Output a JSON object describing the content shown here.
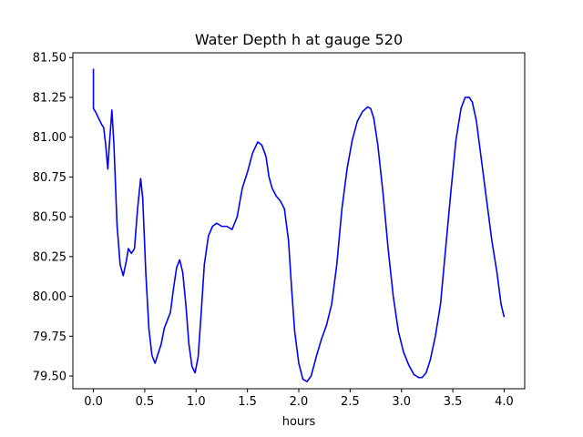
{
  "chart_data": {
    "type": "line",
    "title": "Water Depth h at gauge 520",
    "xlabel": "hours",
    "ylabel": "",
    "xlim": [
      -0.2,
      4.2
    ],
    "ylim": [
      79.42,
      81.53
    ],
    "xticks": [
      0.0,
      0.5,
      1.0,
      1.5,
      2.0,
      2.5,
      3.0,
      3.5,
      4.0
    ],
    "xtick_labels": [
      "0.0",
      "0.5",
      "1.0",
      "1.5",
      "2.0",
      "2.5",
      "3.0",
      "3.5",
      "4.0"
    ],
    "yticks": [
      79.5,
      79.75,
      80.0,
      80.25,
      80.5,
      80.75,
      81.0,
      81.25,
      81.5
    ],
    "ytick_labels": [
      "79.50",
      "79.75",
      "80.00",
      "80.25",
      "80.50",
      "80.75",
      "81.00",
      "81.25",
      "81.50"
    ],
    "grid": false,
    "series": [
      {
        "color": "#0000ff",
        "points": [
          [
            0.0,
            81.43
          ],
          [
            0.0,
            81.18
          ],
          [
            0.02,
            81.16
          ],
          [
            0.05,
            81.12
          ],
          [
            0.08,
            81.08
          ],
          [
            0.1,
            81.06
          ],
          [
            0.12,
            80.95
          ],
          [
            0.14,
            80.8
          ],
          [
            0.155,
            80.95
          ],
          [
            0.18,
            81.17
          ],
          [
            0.2,
            80.95
          ],
          [
            0.23,
            80.45
          ],
          [
            0.26,
            80.2
          ],
          [
            0.29,
            80.13
          ],
          [
            0.32,
            80.22
          ],
          [
            0.34,
            80.3
          ],
          [
            0.37,
            80.27
          ],
          [
            0.4,
            80.3
          ],
          [
            0.43,
            80.55
          ],
          [
            0.46,
            80.74
          ],
          [
            0.48,
            80.62
          ],
          [
            0.51,
            80.15
          ],
          [
            0.54,
            79.8
          ],
          [
            0.57,
            79.63
          ],
          [
            0.6,
            79.58
          ],
          [
            0.63,
            79.64
          ],
          [
            0.66,
            79.7
          ],
          [
            0.69,
            79.8
          ],
          [
            0.72,
            79.85
          ],
          [
            0.75,
            79.9
          ],
          [
            0.78,
            80.05
          ],
          [
            0.81,
            80.18
          ],
          [
            0.84,
            80.23
          ],
          [
            0.87,
            80.15
          ],
          [
            0.9,
            79.95
          ],
          [
            0.93,
            79.7
          ],
          [
            0.96,
            79.56
          ],
          [
            0.99,
            79.52
          ],
          [
            1.02,
            79.62
          ],
          [
            1.05,
            79.9
          ],
          [
            1.08,
            80.2
          ],
          [
            1.12,
            80.38
          ],
          [
            1.16,
            80.44
          ],
          [
            1.2,
            80.46
          ],
          [
            1.25,
            80.44
          ],
          [
            1.3,
            80.44
          ],
          [
            1.35,
            80.42
          ],
          [
            1.4,
            80.5
          ],
          [
            1.45,
            80.68
          ],
          [
            1.5,
            80.78
          ],
          [
            1.55,
            80.9
          ],
          [
            1.6,
            80.97
          ],
          [
            1.64,
            80.95
          ],
          [
            1.68,
            80.88
          ],
          [
            1.71,
            80.75
          ],
          [
            1.74,
            80.68
          ],
          [
            1.78,
            80.63
          ],
          [
            1.82,
            80.6
          ],
          [
            1.86,
            80.55
          ],
          [
            1.9,
            80.35
          ],
          [
            1.93,
            80.05
          ],
          [
            1.96,
            79.78
          ],
          [
            2.0,
            79.58
          ],
          [
            2.04,
            79.48
          ],
          [
            2.08,
            79.465
          ],
          [
            2.12,
            79.5
          ],
          [
            2.17,
            79.62
          ],
          [
            2.22,
            79.73
          ],
          [
            2.27,
            79.82
          ],
          [
            2.32,
            79.95
          ],
          [
            2.37,
            80.2
          ],
          [
            2.42,
            80.55
          ],
          [
            2.47,
            80.8
          ],
          [
            2.52,
            80.98
          ],
          [
            2.57,
            81.1
          ],
          [
            2.62,
            81.16
          ],
          [
            2.67,
            81.19
          ],
          [
            2.7,
            81.18
          ],
          [
            2.73,
            81.12
          ],
          [
            2.77,
            80.95
          ],
          [
            2.82,
            80.65
          ],
          [
            2.87,
            80.3
          ],
          [
            2.92,
            80.0
          ],
          [
            2.97,
            79.78
          ],
          [
            3.02,
            79.65
          ],
          [
            3.07,
            79.57
          ],
          [
            3.12,
            79.51
          ],
          [
            3.17,
            79.49
          ],
          [
            3.2,
            79.49
          ],
          [
            3.24,
            79.52
          ],
          [
            3.28,
            79.6
          ],
          [
            3.33,
            79.75
          ],
          [
            3.38,
            79.95
          ],
          [
            3.43,
            80.3
          ],
          [
            3.48,
            80.65
          ],
          [
            3.53,
            80.98
          ],
          [
            3.58,
            81.18
          ],
          [
            3.62,
            81.25
          ],
          [
            3.66,
            81.25
          ],
          [
            3.69,
            81.22
          ],
          [
            3.73,
            81.1
          ],
          [
            3.78,
            80.85
          ],
          [
            3.83,
            80.6
          ],
          [
            3.88,
            80.35
          ],
          [
            3.93,
            80.15
          ],
          [
            3.97,
            79.95
          ],
          [
            4.0,
            79.87
          ]
        ]
      }
    ]
  }
}
